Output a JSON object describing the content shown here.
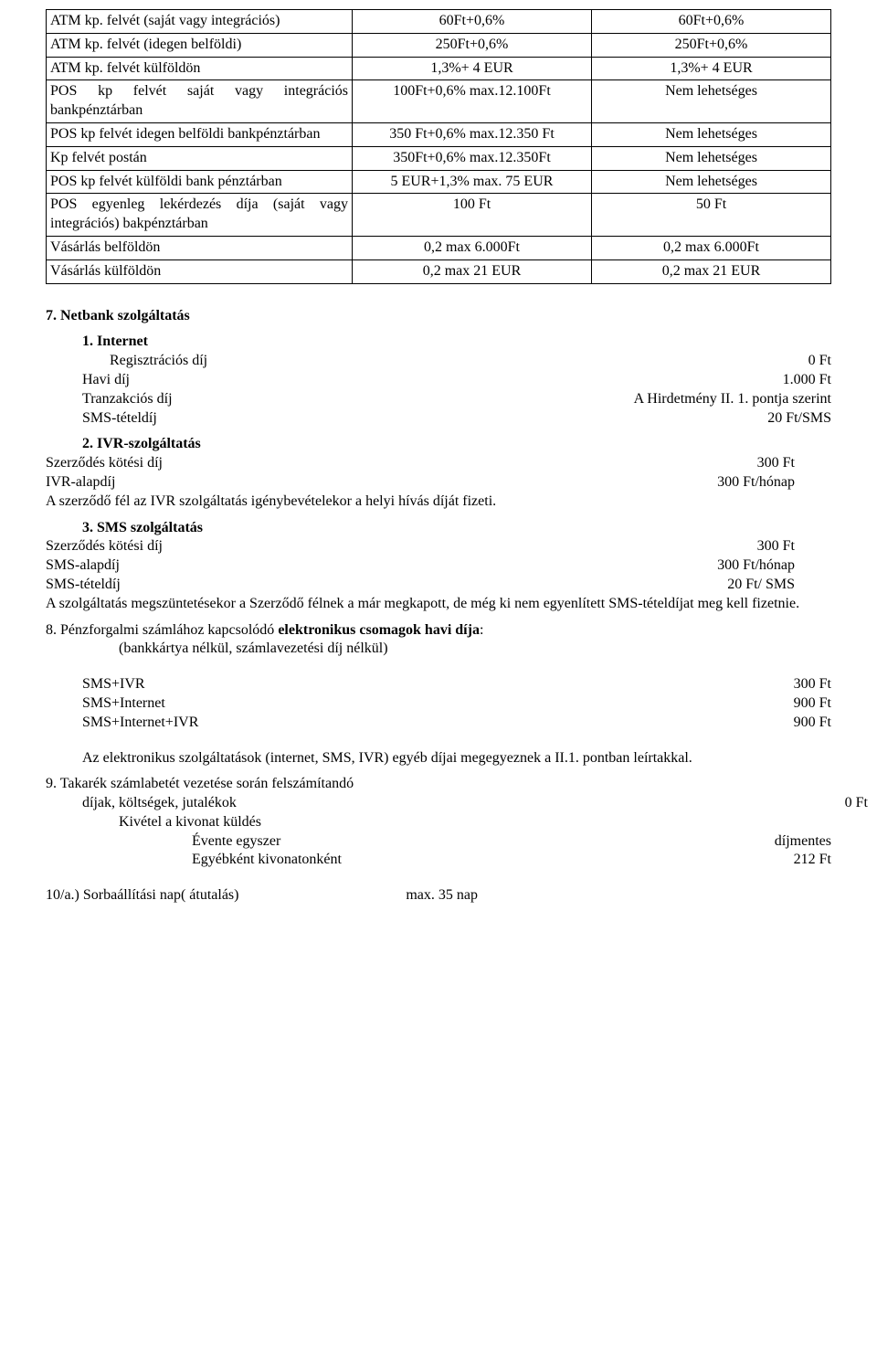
{
  "table": {
    "rows": [
      {
        "c1": "ATM kp. felvét (saját vagy integrációs)",
        "c2": "60Ft+0,6%",
        "c3": "60Ft+0,6%"
      },
      {
        "c1": "ATM kp. felvét (idegen belföldi)",
        "c2": "250Ft+0,6%",
        "c3": "250Ft+0,6%"
      },
      {
        "c1": "ATM kp. felvét külföldön",
        "c2": "1,3%+ 4 EUR",
        "c3": "1,3%+ 4 EUR"
      },
      {
        "c1": "POS kp felvét saját vagy integrációs bankpénztárban",
        "c2": "100Ft+0,6% max.12.100Ft",
        "c3": "Nem lehetséges"
      },
      {
        "c1": "POS kp felvét idegen belföldi bankpénztárban",
        "c2": "350 Ft+0,6% max.12.350 Ft",
        "c3": "Nem lehetséges"
      },
      {
        "c1": "Kp felvét postán",
        "c2": "350Ft+0,6% max.12.350Ft",
        "c3": "Nem lehetséges"
      },
      {
        "c1": "POS kp felvét külföldi bank pénztárban",
        "c2": "5 EUR+1,3% max. 75 EUR",
        "c3": "Nem lehetséges"
      },
      {
        "c1": "POS egyenleg lekérdezés díja (saját vagy integrációs) bakpénztárban",
        "c2": "100 Ft",
        "c3": "50 Ft"
      },
      {
        "c1": "Vásárlás belföldön",
        "c2": "0,2 max 6.000Ft",
        "c3": "0,2 max 6.000Ft"
      },
      {
        "c1": "Vásárlás külföldön",
        "c2": "0,2 max  21 EUR",
        "c3": "0,2 max 21 EUR"
      }
    ]
  },
  "s7": {
    "title": "7. Netbank szolgáltatás",
    "p1": {
      "h": "1. Internet",
      "rows": [
        {
          "l": "Regisztrációs díj",
          "r": "0 Ft"
        },
        {
          "l": "Havi díj",
          "r": "1.000 Ft"
        },
        {
          "l": "Tranzakciós díj",
          "r": "A Hirdetmény II. 1. pontja szerint"
        },
        {
          "l": "SMS-tételdíj",
          "r": "20 Ft/SMS"
        }
      ]
    },
    "p2": {
      "h": "2. IVR-szolgáltatás",
      "rows": [
        {
          "l": "Szerződés kötési díj",
          "r": "300 Ft"
        },
        {
          "l": "IVR-alapdíj",
          "r": "300 Ft/hónap"
        }
      ],
      "note": "A szerződő fél az IVR szolgáltatás igénybevételekor a helyi hívás díját fizeti."
    },
    "p3": {
      "h": "3. SMS szolgáltatás",
      "rows": [
        {
          "l": "Szerződés kötési díj",
          "r": "300 Ft"
        },
        {
          "l": "SMS-alapdíj",
          "r": "300 Ft/hónap"
        },
        {
          "l": "SMS-tételdíj",
          "r": "20 Ft/ SMS"
        }
      ],
      "note": "A szolgáltatás megszüntetésekor a Szerződő félnek a már megkapott, de még ki nem egyenlített SMS-tételdíjat meg kell fizetnie."
    }
  },
  "s8": {
    "title_a": "8. Pénzforgalmi számlához kapcsolódó ",
    "title_b": "elektronikus csomagok havi díja",
    "subtitle": "(bankkártya nélkül, számlavezetési díj nélkül)",
    "rows": [
      {
        "l": "SMS+IVR",
        "r": "300 Ft"
      },
      {
        "l": "SMS+Internet",
        "r": "900 Ft"
      },
      {
        "l": "SMS+Internet+IVR",
        "r": "900 Ft"
      }
    ],
    "note": "Az elektronikus szolgáltatások (internet, SMS, IVR) egyéb díjai megegyeznek a II.1. pontban leírtakkal."
  },
  "s9": {
    "title": "9. Takarék számlabetét vezetése során felszámítandó",
    "row1": {
      "l": "díjak, költségek, jutalékok",
      "r": "0 Ft"
    },
    "kivetel": "Kivétel a kivonat küldés",
    "rows": [
      {
        "l": "Évente egyszer",
        "r": "díjmentes"
      },
      {
        "l": "Egyébként kivonatonként",
        "r": "212 Ft"
      }
    ]
  },
  "s10": {
    "l": "10/a.) Sorbaállítási nap( átutalás)",
    "r": "max. 35  nap"
  }
}
